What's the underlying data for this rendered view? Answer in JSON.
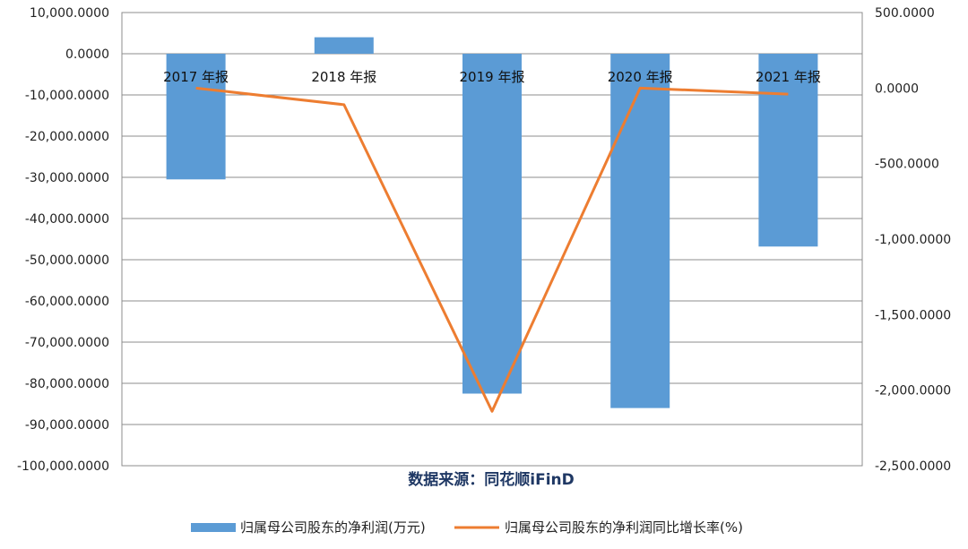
{
  "chart_data": {
    "type": "bar",
    "categories": [
      "2017 年报",
      "2018 年报",
      "2019 年报",
      "2020 年报",
      "2021 年报"
    ],
    "series": [
      {
        "name": "归属母公司股东的净利润(万元)",
        "type": "bar",
        "axis": "left",
        "color": "#5b9bd5",
        "values": [
          -30500,
          4000,
          -82500,
          -86000,
          -46800
        ]
      },
      {
        "name": "归属母公司股东的净利润同比增长率(%)",
        "type": "line",
        "axis": "right",
        "color": "#ed7d31",
        "values": [
          0,
          -110,
          -2140,
          0,
          -40
        ]
      }
    ],
    "y_left": {
      "min": -100000,
      "max": 10000,
      "step": 10000,
      "tick_labels": [
        "10,000.0000",
        "0.0000",
        "-10,000.0000",
        "-20,000.0000",
        "-30,000.0000",
        "-40,000.0000",
        "-50,000.0000",
        "-60,000.0000",
        "-70,000.0000",
        "-80,000.0000",
        "-90,000.0000",
        "-100,000.0000"
      ]
    },
    "y_right": {
      "min": -2500,
      "max": 500,
      "step": 500,
      "tick_labels": [
        "500.0000",
        "0.0000",
        "-500.0000",
        "-1,000.0000",
        "-1,500.0000",
        "-2,000.0000",
        "-2,500.0000"
      ]
    },
    "grid": true,
    "source_note": "数据来源：同花顺iFinD",
    "legend_position": "bottom"
  }
}
